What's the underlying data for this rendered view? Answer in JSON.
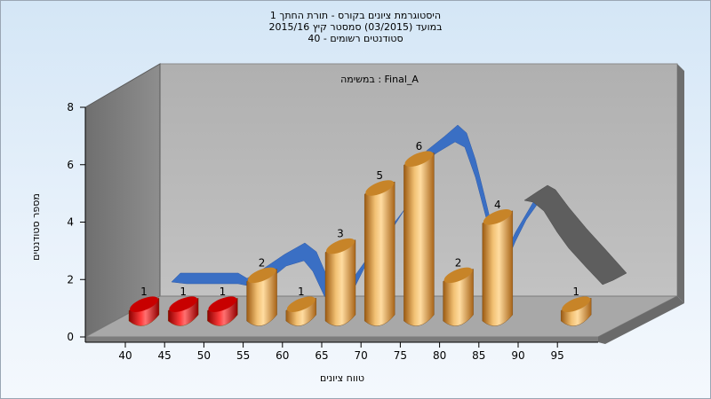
{
  "header": {
    "title_line1": "היסטוגרמת ציונים בקורס - תורת החתך 1",
    "title_line2": "במועד  (03/2015)  סמסטר קיץ  2015/16",
    "title_line3": "40 - סטודנטים רשומים"
  },
  "chart_data": {
    "type": "bar",
    "subtitle": "במשימה : Final_A",
    "xlabel": "טווח ציונים",
    "ylabel": "מספר סטודנטים",
    "ylim": [
      0,
      8
    ],
    "yticks": [
      0,
      2,
      4,
      6,
      8
    ],
    "categories": [
      "40",
      "45",
      "50",
      "55",
      "60",
      "65",
      "70",
      "75",
      "80",
      "85",
      "90",
      "95"
    ],
    "values": [
      1,
      1,
      1,
      2,
      1,
      3,
      5,
      6,
      2,
      4,
      0,
      1
    ],
    "data_labels": [
      "1",
      "1",
      "1",
      "2",
      "1",
      "3",
      "5",
      "6",
      "2",
      "4",
      "",
      "1"
    ],
    "bar_colors": [
      "#d81818",
      "#d81818",
      "#d81818",
      "#e2a048",
      "#e2a048",
      "#e2a048",
      "#e2a048",
      "#e2a048",
      "#e2a048",
      "#e2a048",
      "#e2a048",
      "#e2a048"
    ],
    "trend_colors": {
      "curve": "#3a6fc4",
      "tail": "#5e5e5e"
    },
    "grid": false,
    "legend": "none"
  }
}
